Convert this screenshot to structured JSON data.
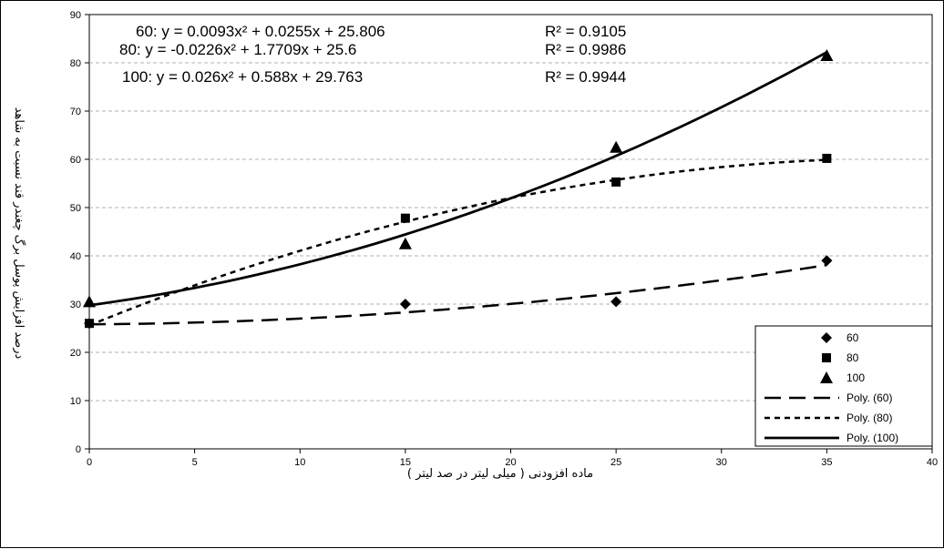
{
  "chart_data": {
    "type": "scatter",
    "xlabel": "ماده افزودنی ( میلی لیتر در صد لیتر )",
    "ylabel": "درصد افزایش پوسل برگ چغندر قند نسبت به شاهد",
    "xlim": [
      0,
      40
    ],
    "ylim": [
      0,
      90
    ],
    "x_ticks": [
      "0",
      "5",
      "10",
      "15",
      "20",
      "25",
      "30",
      "35",
      "40"
    ],
    "y_ticks": [
      "0",
      "10",
      "20",
      "30",
      "40",
      "50",
      "60",
      "70",
      "80",
      "90"
    ],
    "grid": "horizontal dashed",
    "legend_position": "bottom-right",
    "series": [
      {
        "name": "60",
        "marker": "diamond",
        "points": [
          [
            0,
            26
          ],
          [
            15,
            30
          ],
          [
            25,
            30.5
          ],
          [
            35,
            39
          ]
        ],
        "trendline": {
          "name": "Poly. (60)",
          "style": "long-dash",
          "coef": [
            0.0093,
            0.0255,
            25.806
          ]
        },
        "equation": "60: y = 0.0093x² + 0.0255x + 25.806",
        "r2": "R² = 0.9105"
      },
      {
        "name": "80",
        "marker": "square",
        "points": [
          [
            0,
            26
          ],
          [
            15,
            47.8
          ],
          [
            25,
            55.3
          ],
          [
            35,
            60.2
          ]
        ],
        "trendline": {
          "name": "Poly. (80)",
          "style": "short-dash",
          "coef": [
            -0.0226,
            1.7709,
            25.6
          ]
        },
        "equation": "80: y = -0.0226x² + 1.7709x + 25.6",
        "r2": "R² = 0.9986"
      },
      {
        "name": "100",
        "marker": "triangle",
        "points": [
          [
            0,
            30.5
          ],
          [
            15,
            42.5
          ],
          [
            25,
            62.5
          ],
          [
            35,
            81.5
          ]
        ],
        "trendline": {
          "name": "Poly. (100)",
          "style": "solid",
          "coef": [
            0.026,
            0.588,
            29.763
          ]
        },
        "equation": "100: y = 0.026x² + 0.588x + 29.763",
        "r2": "R² = 0.9944"
      }
    ]
  }
}
